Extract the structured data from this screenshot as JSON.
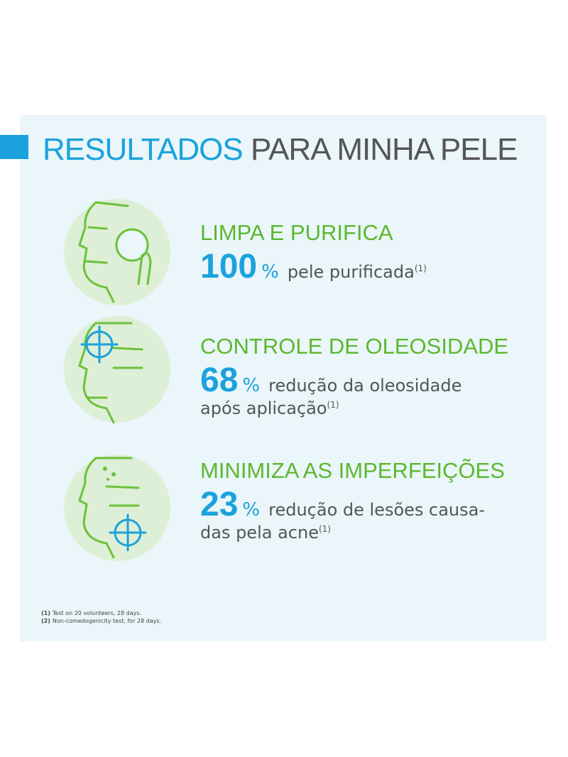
{
  "title": {
    "highlight": "RESULTADOS",
    "rest": "PARA MINHA PELE"
  },
  "items": [
    {
      "heading": "LIMPA E PURIFICA",
      "number": 100,
      "unit": "%",
      "lines": [
        "pele purificada"
      ],
      "note": "(1)"
    },
    {
      "heading": "CONTROLE DE OLEOSIDADE",
      "number": 68,
      "unit": "%",
      "lines": [
        "redução da oleosidade",
        "após aplicação"
      ],
      "note": "(1)"
    },
    {
      "heading": "MINIMIZA AS IMPERFEIÇÕES",
      "number": 23,
      "unit": "%",
      "lines": [
        "redução de lesões causa-",
        "das pela acne"
      ],
      "note": "(1)"
    }
  ],
  "footnotes": [
    {
      "marker": "(1)",
      "text": "Test on 20 volunteers, 28 days."
    },
    {
      "marker": "(2)",
      "text": "Non-comedogenicity test, for 28 days."
    }
  ]
}
